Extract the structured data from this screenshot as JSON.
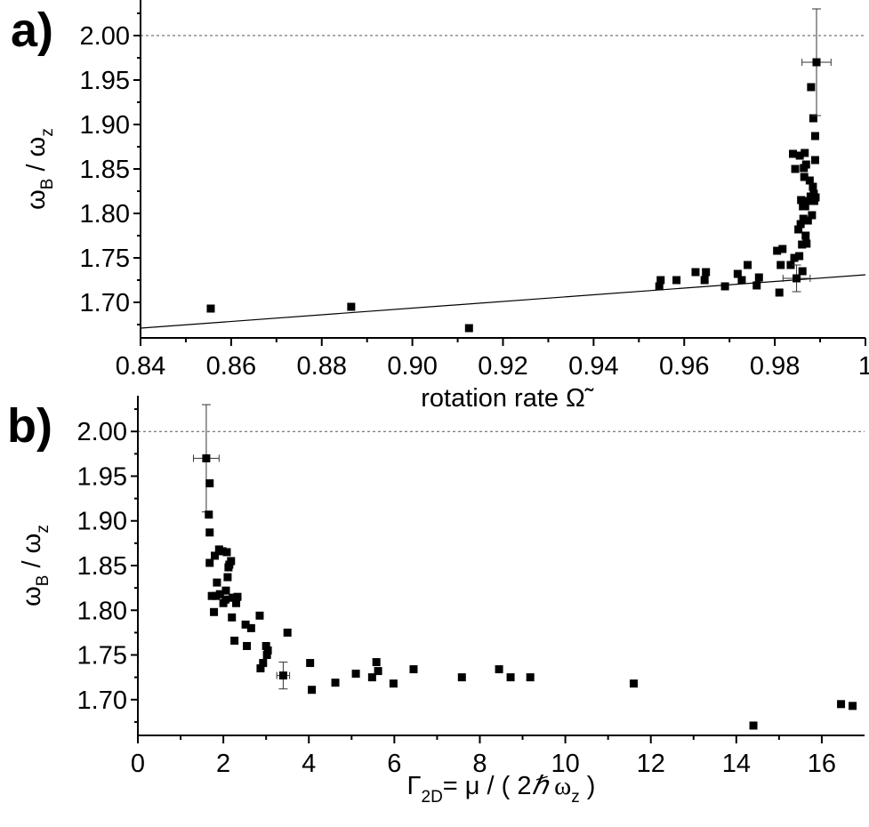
{
  "chart_data": [
    {
      "type": "scatter",
      "panel_label": "a)",
      "xlabel": "rotation rate Ω̃",
      "ylabel": "ω_B / ω_z",
      "ylabel_parts": [
        "ω",
        "B",
        " / ω",
        "z"
      ],
      "xlim": [
        0.84,
        1.0
      ],
      "ylim": [
        1.66,
        2.04
      ],
      "x_ticks": [
        0.84,
        0.86,
        0.88,
        0.9,
        0.92,
        0.94,
        0.96,
        0.98,
        1.0
      ],
      "x_tick_labels": [
        "0.84",
        "0.86",
        "0.88",
        "0.90",
        "0.92",
        "0.94",
        "0.96",
        "0.98",
        "1"
      ],
      "y_ticks": [
        1.7,
        1.75,
        1.8,
        1.85,
        1.9,
        1.95,
        2.0
      ],
      "y_tick_labels": [
        "1.70",
        "1.75",
        "1.80",
        "1.85",
        "1.90",
        "1.95",
        "2.00"
      ],
      "reference_line": {
        "y": 2.0,
        "style": "dotted"
      },
      "fit_line": {
        "x": [
          0.84,
          1.0
        ],
        "y": [
          1.671,
          1.731
        ]
      },
      "points": [
        {
          "x": 0.8555,
          "y": 1.693
        },
        {
          "x": 0.8865,
          "y": 1.695
        },
        {
          "x": 0.9125,
          "y": 1.671
        },
        {
          "x": 0.9545,
          "y": 1.718
        },
        {
          "x": 0.9548,
          "y": 1.725
        },
        {
          "x": 0.9583,
          "y": 1.725
        },
        {
          "x": 0.9625,
          "y": 1.734
        },
        {
          "x": 0.9645,
          "y": 1.725
        },
        {
          "x": 0.9648,
          "y": 1.734
        },
        {
          "x": 0.969,
          "y": 1.718
        },
        {
          "x": 0.9718,
          "y": 1.732
        },
        {
          "x": 0.9727,
          "y": 1.725
        },
        {
          "x": 0.974,
          "y": 1.742
        },
        {
          "x": 0.976,
          "y": 1.719
        },
        {
          "x": 0.9765,
          "y": 1.728
        },
        {
          "x": 0.9805,
          "y": 1.758
        },
        {
          "x": 0.981,
          "y": 1.711
        },
        {
          "x": 0.9813,
          "y": 1.742
        },
        {
          "x": 0.9817,
          "y": 1.76
        },
        {
          "x": 0.9835,
          "y": 1.742
        },
        {
          "x": 0.984,
          "y": 1.867
        },
        {
          "x": 0.9843,
          "y": 1.75
        },
        {
          "x": 0.9845,
          "y": 1.85
        },
        {
          "x": 0.9848,
          "y": 1.727,
          "xerr": 0.003,
          "yerr": 0.015
        },
        {
          "x": 0.9852,
          "y": 1.782
        },
        {
          "x": 0.9854,
          "y": 1.752
        },
        {
          "x": 0.9855,
          "y": 1.865
        },
        {
          "x": 0.9857,
          "y": 1.788
        },
        {
          "x": 0.9858,
          "y": 1.815
        },
        {
          "x": 0.986,
          "y": 1.765
        },
        {
          "x": 0.9861,
          "y": 1.735
        },
        {
          "x": 0.9862,
          "y": 1.808
        },
        {
          "x": 0.9863,
          "y": 1.794
        },
        {
          "x": 0.9864,
          "y": 1.851
        },
        {
          "x": 0.9865,
          "y": 1.841
        },
        {
          "x": 0.9866,
          "y": 1.868
        },
        {
          "x": 0.9867,
          "y": 1.808
        },
        {
          "x": 0.9868,
          "y": 1.775
        },
        {
          "x": 0.9869,
          "y": 1.855
        },
        {
          "x": 0.987,
          "y": 1.766
        },
        {
          "x": 0.9872,
          "y": 1.814
        },
        {
          "x": 0.9873,
          "y": 1.792
        },
        {
          "x": 0.9875,
          "y": 1.814
        },
        {
          "x": 0.9877,
          "y": 1.837
        },
        {
          "x": 0.9879,
          "y": 1.819
        },
        {
          "x": 0.988,
          "y": 1.942
        },
        {
          "x": 0.9882,
          "y": 1.798
        },
        {
          "x": 0.9884,
          "y": 1.83
        },
        {
          "x": 0.9885,
          "y": 1.907
        },
        {
          "x": 0.9886,
          "y": 1.822
        },
        {
          "x": 0.9887,
          "y": 1.814
        },
        {
          "x": 0.9889,
          "y": 1.86
        },
        {
          "x": 0.9889,
          "y": 1.887
        },
        {
          "x": 0.989,
          "y": 1.818
        },
        {
          "x": 0.9892,
          "y": 1.97,
          "xerr": 0.0032,
          "yerr": 0.06
        }
      ]
    },
    {
      "type": "scatter",
      "panel_label": "b)",
      "xlabel": "Γ_2D = μ / ( 2ℏ ω_z )",
      "xlabel_parts": [
        "Γ",
        "2D",
        "= μ / ( 2",
        "ℏ",
        " ω",
        "z",
        " )"
      ],
      "ylabel": "ω_B / ω_z",
      "ylabel_parts": [
        "ω",
        "B",
        " / ω",
        "z"
      ],
      "xlim": [
        0,
        17
      ],
      "ylim": [
        1.66,
        2.04
      ],
      "x_ticks": [
        0,
        2,
        4,
        6,
        8,
        10,
        12,
        14,
        16
      ],
      "x_tick_labels": [
        "0",
        "2",
        "4",
        "6",
        "8",
        "10",
        "12",
        "14",
        "16"
      ],
      "y_ticks": [
        1.7,
        1.75,
        1.8,
        1.85,
        1.9,
        1.95,
        2.0
      ],
      "y_tick_labels": [
        "1.70",
        "1.75",
        "1.80",
        "1.85",
        "1.90",
        "1.95",
        "2.00"
      ],
      "reference_line": {
        "y": 2.0,
        "style": "dotted"
      },
      "points": [
        {
          "x": 1.6,
          "y": 1.97,
          "xerr": 0.3,
          "yerr": 0.06
        },
        {
          "x": 1.68,
          "y": 1.942
        },
        {
          "x": 1.66,
          "y": 1.907
        },
        {
          "x": 1.68,
          "y": 1.887
        },
        {
          "x": 1.68,
          "y": 1.853
        },
        {
          "x": 1.73,
          "y": 1.816
        },
        {
          "x": 1.78,
          "y": 1.798
        },
        {
          "x": 1.8,
          "y": 1.861
        },
        {
          "x": 1.83,
          "y": 1.816
        },
        {
          "x": 1.85,
          "y": 1.831
        },
        {
          "x": 1.9,
          "y": 1.868
        },
        {
          "x": 1.92,
          "y": 1.818
        },
        {
          "x": 1.98,
          "y": 1.866
        },
        {
          "x": 2.0,
          "y": 1.808
        },
        {
          "x": 2.05,
          "y": 1.812
        },
        {
          "x": 2.06,
          "y": 1.822
        },
        {
          "x": 2.08,
          "y": 1.865
        },
        {
          "x": 2.1,
          "y": 1.837
        },
        {
          "x": 2.12,
          "y": 1.848
        },
        {
          "x": 2.14,
          "y": 1.851
        },
        {
          "x": 2.18,
          "y": 1.855
        },
        {
          "x": 2.2,
          "y": 1.792
        },
        {
          "x": 2.22,
          "y": 1.814
        },
        {
          "x": 2.26,
          "y": 1.766
        },
        {
          "x": 2.28,
          "y": 1.814
        },
        {
          "x": 2.3,
          "y": 1.808
        },
        {
          "x": 2.33,
          "y": 1.815
        },
        {
          "x": 2.52,
          "y": 1.784
        },
        {
          "x": 2.55,
          "y": 1.76
        },
        {
          "x": 2.65,
          "y": 1.78
        },
        {
          "x": 2.85,
          "y": 1.794
        },
        {
          "x": 2.87,
          "y": 1.735
        },
        {
          "x": 2.93,
          "y": 1.741
        },
        {
          "x": 3.0,
          "y": 1.76
        },
        {
          "x": 3.02,
          "y": 1.75
        },
        {
          "x": 3.04,
          "y": 1.755
        },
        {
          "x": 3.4,
          "y": 1.727,
          "xerr": 0.15,
          "yerr": 0.015
        },
        {
          "x": 3.5,
          "y": 1.775
        },
        {
          "x": 4.03,
          "y": 1.741
        },
        {
          "x": 4.07,
          "y": 1.711
        },
        {
          "x": 4.62,
          "y": 1.719
        },
        {
          "x": 5.1,
          "y": 1.729
        },
        {
          "x": 5.48,
          "y": 1.725
        },
        {
          "x": 5.58,
          "y": 1.742
        },
        {
          "x": 5.62,
          "y": 1.732
        },
        {
          "x": 5.98,
          "y": 1.718
        },
        {
          "x": 6.45,
          "y": 1.734
        },
        {
          "x": 7.58,
          "y": 1.725
        },
        {
          "x": 8.45,
          "y": 1.734
        },
        {
          "x": 8.72,
          "y": 1.725
        },
        {
          "x": 9.18,
          "y": 1.725
        },
        {
          "x": 11.6,
          "y": 1.718
        },
        {
          "x": 14.4,
          "y": 1.671
        },
        {
          "x": 16.45,
          "y": 1.695
        },
        {
          "x": 16.72,
          "y": 1.693
        }
      ]
    }
  ]
}
